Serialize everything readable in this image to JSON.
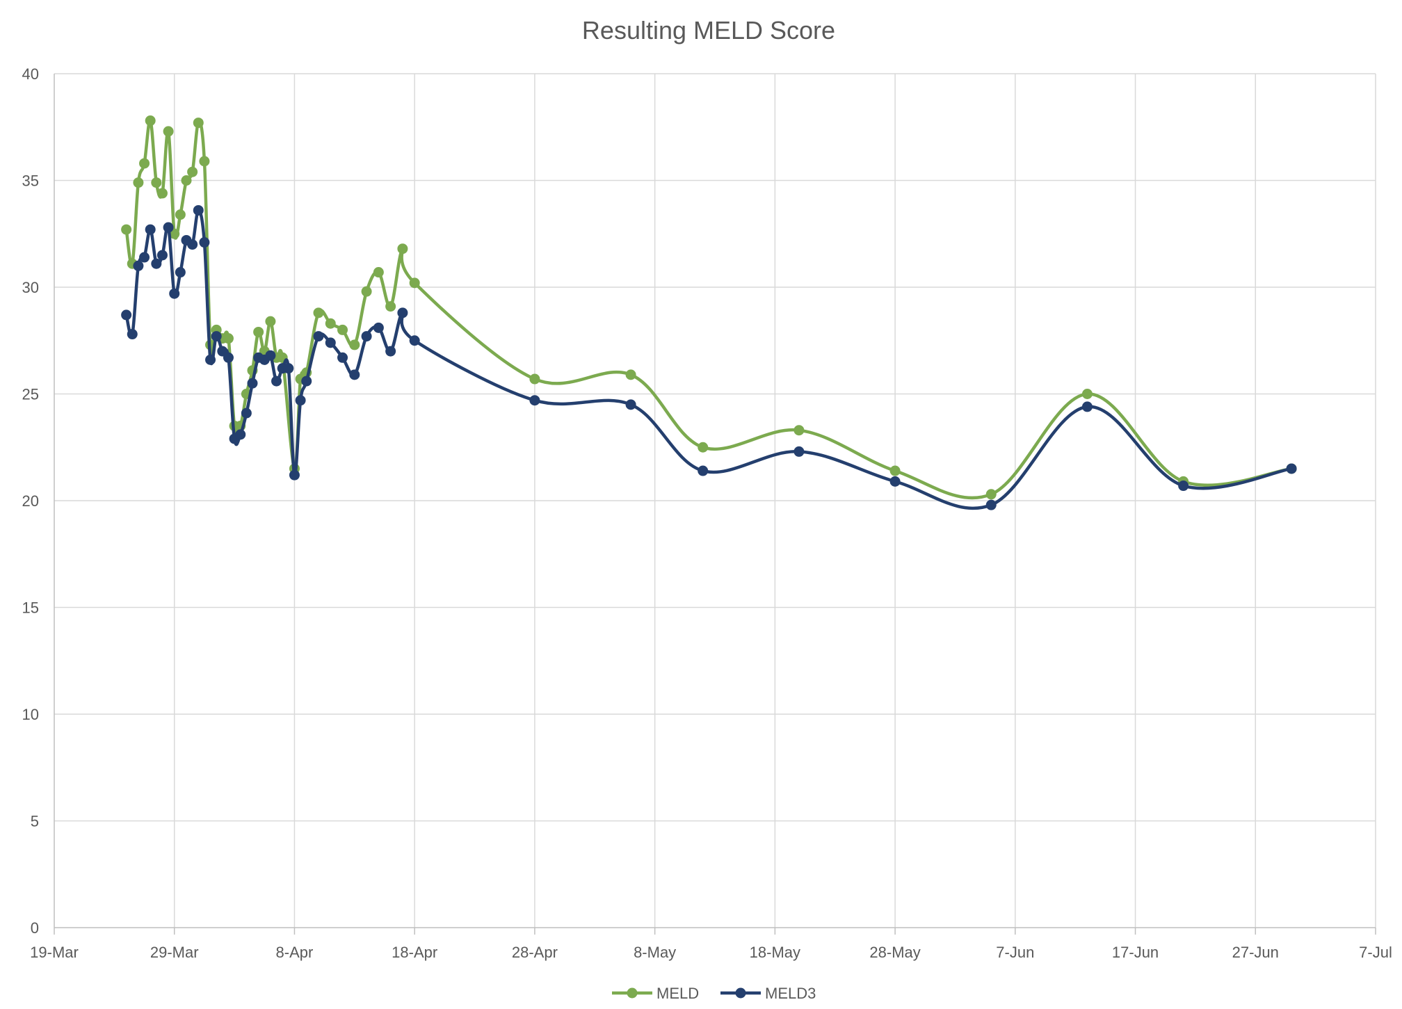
{
  "chart_data": {
    "type": "line",
    "title": "Resulting MELD Score",
    "xlabel": "",
    "ylabel": "",
    "x_axis": {
      "type": "date",
      "range": [
        "2024-03-19",
        "2024-07-07"
      ],
      "tick_labels": [
        "19-Mar",
        "29-Mar",
        "8-Apr",
        "18-Apr",
        "28-Apr",
        "8-May",
        "18-May",
        "28-May",
        "7-Jun",
        "17-Jun",
        "27-Jun",
        "7-Jul"
      ]
    },
    "y_axis": {
      "range": [
        0,
        40
      ],
      "tick_labels": [
        "0",
        "5",
        "10",
        "15",
        "20",
        "25",
        "30",
        "35",
        "40"
      ]
    },
    "grid": true,
    "legend_position": "bottom",
    "smoothed": true,
    "series": [
      {
        "name": "MELD",
        "color": "#7caa4f",
        "points": [
          [
            "2024-03-25 00:00",
            32.7
          ],
          [
            "2024-03-25 12:00",
            31.1
          ],
          [
            "2024-03-26 00:00",
            34.9
          ],
          [
            "2024-03-26 12:00",
            35.8
          ],
          [
            "2024-03-27 00:00",
            37.8
          ],
          [
            "2024-03-27 12:00",
            34.9
          ],
          [
            "2024-03-28 00:00",
            34.4
          ],
          [
            "2024-03-28 12:00",
            37.3
          ],
          [
            "2024-03-29 00:00",
            32.5
          ],
          [
            "2024-03-29 12:00",
            33.4
          ],
          [
            "2024-03-30 00:00",
            35.0
          ],
          [
            "2024-03-30 12:00",
            35.4
          ],
          [
            "2024-03-31 00:00",
            37.7
          ],
          [
            "2024-03-31 12:00",
            35.9
          ],
          [
            "2024-04-01 00:00",
            27.3
          ],
          [
            "2024-04-01 12:00",
            28.0
          ],
          [
            "2024-04-02 00:00",
            27.6
          ],
          [
            "2024-04-02 12:00",
            27.6
          ],
          [
            "2024-04-03 00:00",
            23.5
          ],
          [
            "2024-04-03 12:00",
            23.5
          ],
          [
            "2024-04-04 00:00",
            25.0
          ],
          [
            "2024-04-04 12:00",
            26.1
          ],
          [
            "2024-04-05 00:00",
            27.9
          ],
          [
            "2024-04-05 12:00",
            27.0
          ],
          [
            "2024-04-06 00:00",
            28.4
          ],
          [
            "2024-04-06 12:00",
            26.7
          ],
          [
            "2024-04-07 00:00",
            26.7
          ],
          [
            "2024-04-08 00:00",
            21.5
          ],
          [
            "2024-04-08 12:00",
            25.7
          ],
          [
            "2024-04-09 00:00",
            26.0
          ],
          [
            "2024-04-10 00:00",
            28.8
          ],
          [
            "2024-04-11 00:00",
            28.3
          ],
          [
            "2024-04-12 00:00",
            28.0
          ],
          [
            "2024-04-13 00:00",
            27.3
          ],
          [
            "2024-04-14 00:00",
            29.8
          ],
          [
            "2024-04-15 00:00",
            30.7
          ],
          [
            "2024-04-16 00:00",
            29.1
          ],
          [
            "2024-04-17 00:00",
            31.8
          ],
          [
            "2024-04-18 00:00",
            30.2
          ],
          [
            "2024-04-28 00:00",
            25.7
          ],
          [
            "2024-05-06 00:00",
            25.9
          ],
          [
            "2024-05-12 00:00",
            22.5
          ],
          [
            "2024-05-20 00:00",
            23.3
          ],
          [
            "2024-05-28 00:00",
            21.4
          ],
          [
            "2024-06-05 00:00",
            20.3
          ],
          [
            "2024-06-13 00:00",
            25.0
          ],
          [
            "2024-06-21 00:00",
            20.9
          ],
          [
            "2024-06-30 00:00",
            21.5
          ]
        ]
      },
      {
        "name": "MELD3",
        "color": "#243f6e",
        "points": [
          [
            "2024-03-25 00:00",
            28.7
          ],
          [
            "2024-03-25 12:00",
            27.8
          ],
          [
            "2024-03-26 00:00",
            31.0
          ],
          [
            "2024-03-26 12:00",
            31.4
          ],
          [
            "2024-03-27 00:00",
            32.7
          ],
          [
            "2024-03-27 12:00",
            31.1
          ],
          [
            "2024-03-28 00:00",
            31.5
          ],
          [
            "2024-03-28 12:00",
            32.8
          ],
          [
            "2024-03-29 00:00",
            29.7
          ],
          [
            "2024-03-29 12:00",
            30.7
          ],
          [
            "2024-03-30 00:00",
            32.2
          ],
          [
            "2024-03-30 12:00",
            32.0
          ],
          [
            "2024-03-31 00:00",
            33.6
          ],
          [
            "2024-03-31 12:00",
            32.1
          ],
          [
            "2024-04-01 00:00",
            26.6
          ],
          [
            "2024-04-01 12:00",
            27.7
          ],
          [
            "2024-04-02 00:00",
            27.0
          ],
          [
            "2024-04-02 12:00",
            26.7
          ],
          [
            "2024-04-03 00:00",
            22.9
          ],
          [
            "2024-04-03 12:00",
            23.1
          ],
          [
            "2024-04-04 00:00",
            24.1
          ],
          [
            "2024-04-04 12:00",
            25.5
          ],
          [
            "2024-04-05 00:00",
            26.7
          ],
          [
            "2024-04-05 12:00",
            26.6
          ],
          [
            "2024-04-06 00:00",
            26.8
          ],
          [
            "2024-04-06 12:00",
            25.6
          ],
          [
            "2024-04-07 00:00",
            26.2
          ],
          [
            "2024-04-07 12:00",
            26.2
          ],
          [
            "2024-04-08 00:00",
            21.2
          ],
          [
            "2024-04-08 12:00",
            24.7
          ],
          [
            "2024-04-09 00:00",
            25.6
          ],
          [
            "2024-04-10 00:00",
            27.7
          ],
          [
            "2024-04-11 00:00",
            27.4
          ],
          [
            "2024-04-12 00:00",
            26.7
          ],
          [
            "2024-04-13 00:00",
            25.9
          ],
          [
            "2024-04-14 00:00",
            27.7
          ],
          [
            "2024-04-15 00:00",
            28.1
          ],
          [
            "2024-04-16 00:00",
            27.0
          ],
          [
            "2024-04-17 00:00",
            28.8
          ],
          [
            "2024-04-18 00:00",
            27.5
          ],
          [
            "2024-04-28 00:00",
            24.7
          ],
          [
            "2024-05-06 00:00",
            24.5
          ],
          [
            "2024-05-12 00:00",
            21.4
          ],
          [
            "2024-05-20 00:00",
            22.3
          ],
          [
            "2024-05-28 00:00",
            20.9
          ],
          [
            "2024-06-05 00:00",
            19.8
          ],
          [
            "2024-06-13 00:00",
            24.4
          ],
          [
            "2024-06-21 00:00",
            20.7
          ],
          [
            "2024-06-30 00:00",
            21.5
          ]
        ]
      }
    ]
  }
}
